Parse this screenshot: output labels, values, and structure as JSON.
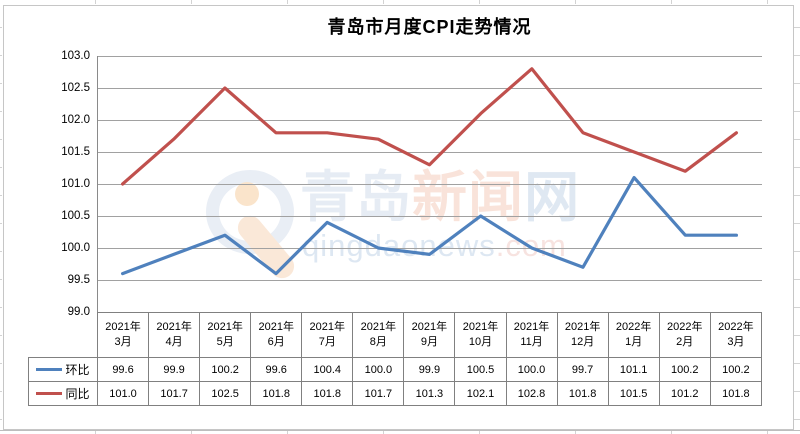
{
  "chart_data": {
    "type": "line",
    "title": "青岛市月度CPI走势情况",
    "xlabel": "",
    "ylabel": "",
    "ylim": [
      99.0,
      103.0
    ],
    "y_ticks": [
      "103.0",
      "102.5",
      "102.0",
      "101.5",
      "101.0",
      "100.5",
      "100.0",
      "99.5",
      "99.0"
    ],
    "categories": [
      "2021年3月",
      "2021年4月",
      "2021年5月",
      "2021年6月",
      "2021年7月",
      "2021年8月",
      "2021年9月",
      "2021年10月",
      "2021年11月",
      "2021年12月",
      "2022年1月",
      "2022年2月",
      "2022年3月"
    ],
    "series": [
      {
        "name": "环比",
        "color": "#4F81BD",
        "values": [
          99.6,
          99.9,
          100.2,
          99.6,
          100.4,
          100.0,
          99.9,
          100.5,
          100.0,
          99.7,
          101.1,
          100.2,
          100.2
        ]
      },
      {
        "name": "同比",
        "color": "#C0504D",
        "values": [
          101.0,
          101.7,
          102.5,
          101.8,
          101.8,
          101.7,
          101.3,
          102.1,
          102.8,
          101.8,
          101.5,
          101.2,
          101.8
        ]
      }
    ],
    "grid": "horizontal",
    "gridline_color": "#a1a1a1",
    "legend_position": "data-table-left"
  },
  "watermark": {
    "chars": [
      {
        "text": "青",
        "color": "#e6ecf4"
      },
      {
        "text": "岛",
        "color": "#e6ecf4"
      },
      {
        "text": "新",
        "color": "#f9e3da"
      },
      {
        "text": "闻",
        "color": "#f9e3da"
      },
      {
        "text": "网",
        "color": "#dfe8f2"
      }
    ],
    "url_main": "qingdaonews",
    "url_suffix": ".com",
    "url_main_color": "#dde7f2",
    "url_suffix_color": "#f7e3e0"
  }
}
